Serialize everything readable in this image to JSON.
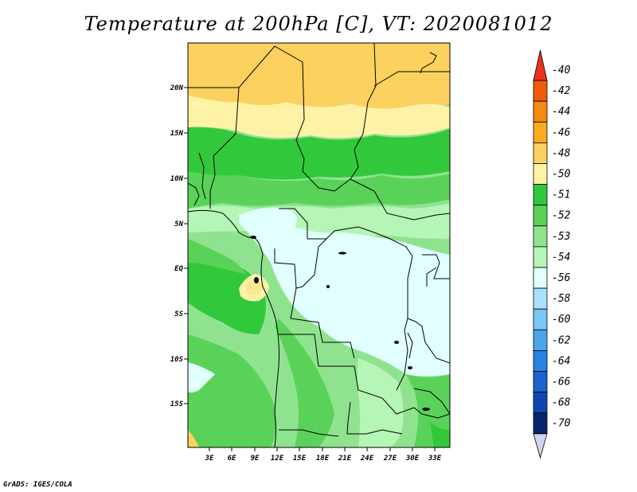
{
  "title": "Temperature at 200hPa [C], VT: 2020081012",
  "credit": "GrADS: IGES/COLA",
  "map": {
    "lat_labels": [
      "20N",
      "15N",
      "10N",
      "5N",
      "EQ",
      "5S",
      "10S",
      "15S"
    ],
    "lon_labels": [
      "3E",
      "6E",
      "9E",
      "12E",
      "15E",
      "18E",
      "21E",
      "24E",
      "27E",
      "30E",
      "33E"
    ]
  },
  "colorbar": {
    "labels": [
      "-40",
      "-42",
      "-44",
      "-46",
      "-48",
      "-50",
      "-51",
      "-52",
      "-53",
      "-54",
      "-56",
      "-58",
      "-60",
      "-62",
      "-64",
      "-66",
      "-68",
      "-70"
    ],
    "colors": [
      "#e8321e",
      "#f25a0a",
      "#f78a0f",
      "#fbab1e",
      "#fdd15f",
      "#fdf2a6",
      "#32c83c",
      "#5ad25a",
      "#8fe38f",
      "#b5f5b5",
      "#e1ffff",
      "#aae1fa",
      "#78c8f5",
      "#4ba5eb",
      "#2882e1",
      "#1964d2",
      "#0f46b4",
      "#06236e",
      "#d3d3f0"
    ]
  }
}
